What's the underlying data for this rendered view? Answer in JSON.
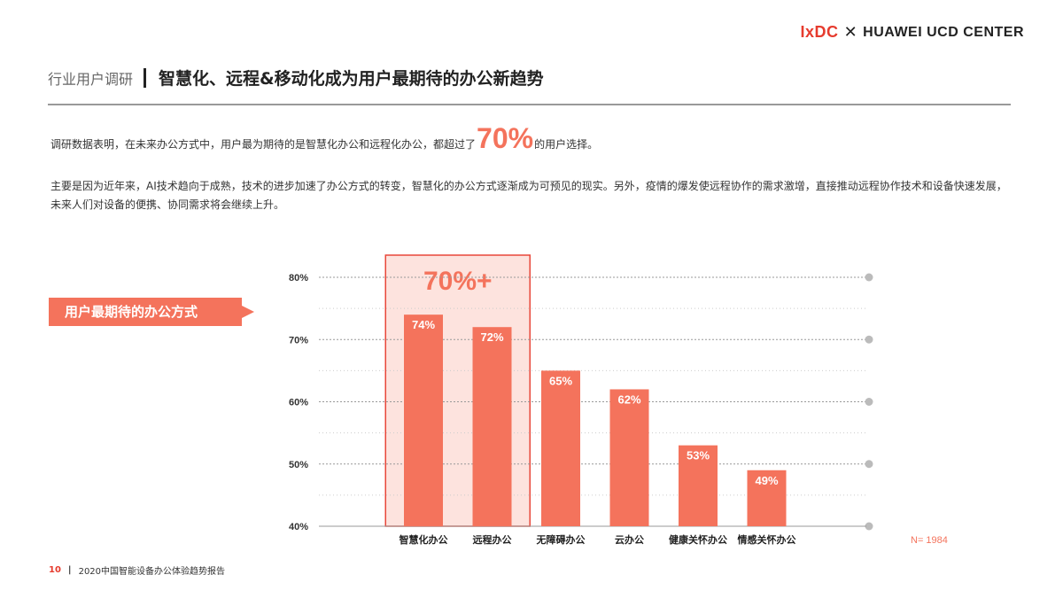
{
  "brand": {
    "ixdc": "IxDC",
    "cross": "✕",
    "partner": "HUAWEI UCD CENTER"
  },
  "header": {
    "section": "行业用户调研",
    "title": "智慧化、远程&移动化成为用户最期待的办公新趋势"
  },
  "intro": {
    "before": "调研数据表明，在未来办公方式中，用户最为期待的是智慧化办公和远程化办公，都超过了",
    "highlight": "70%",
    "after": "的用户选择。"
  },
  "body_text": "主要是因为近年来，AI技术趋向于成熟，技术的进步加速了办公方式的转变，智慧化的办公方式逐渐成为可预见的现实。另外，疫情的爆发使远程协作的需求激增，直接推动远程协作技术和设备快速发展，未来人们对设备的便携、协同需求将会继续上升。",
  "tag_label": "用户最期待的办公方式",
  "colors": {
    "accent": "#f4735c",
    "highlight_fill": "#fde3de",
    "highlight_border": "#e8473a",
    "grid": "#aaaaaa"
  },
  "chart_data": {
    "type": "bar",
    "categories": [
      "智慧化办公",
      "远程办公",
      "无障碍办公",
      "云办公",
      "健康关怀办公",
      "情感关怀办公"
    ],
    "values": [
      74,
      72,
      65,
      62,
      53,
      49
    ],
    "value_labels": [
      "74%",
      "72%",
      "65%",
      "62%",
      "53%",
      "49%"
    ],
    "ylim": [
      40,
      80
    ],
    "yticks": [
      40,
      50,
      60,
      70,
      80
    ],
    "ytick_labels": [
      "40%",
      "50%",
      "60%",
      "70%",
      "80%"
    ],
    "highlight_categories": 2,
    "highlight_label": "70%+",
    "note": "N= 1984",
    "grid": true
  },
  "footer": {
    "page": "10",
    "title": "2020中国智能设备办公体验趋势报告"
  }
}
